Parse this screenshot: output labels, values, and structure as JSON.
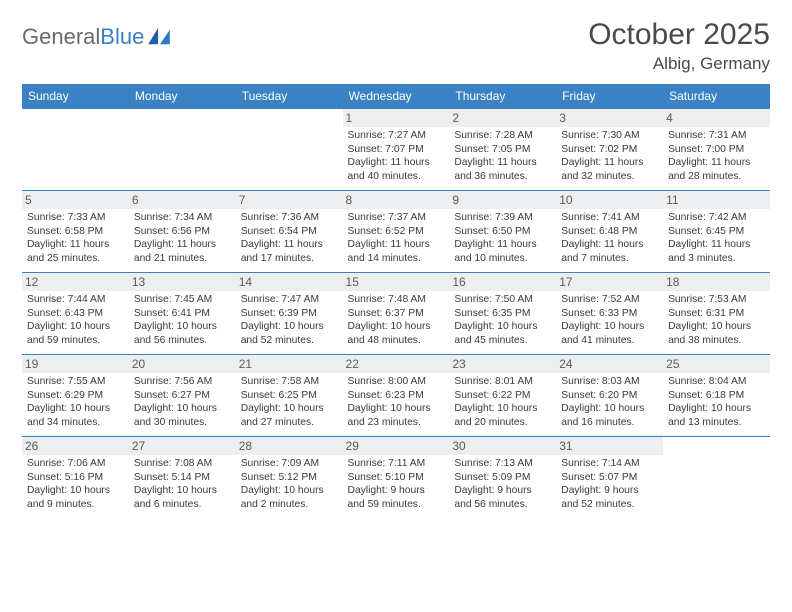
{
  "logo": {
    "text_general": "General",
    "text_blue": "Blue"
  },
  "title": "October 2025",
  "location": "Albig, Germany",
  "colors": {
    "header_bg": "#3a82c4",
    "header_text": "#ffffff",
    "daynum_bg": "#eceef0",
    "row_border": "#3a82c4",
    "body_text": "#3a3a3a",
    "title_text": "#4a4a4a",
    "logo_gray": "#6b6b6b",
    "logo_blue": "#3a7fc4"
  },
  "day_names": [
    "Sunday",
    "Monday",
    "Tuesday",
    "Wednesday",
    "Thursday",
    "Friday",
    "Saturday"
  ],
  "weeks": [
    [
      null,
      null,
      null,
      {
        "d": "1",
        "sr": "7:27 AM",
        "ss": "7:07 PM",
        "dl": "11 hours and 40 minutes."
      },
      {
        "d": "2",
        "sr": "7:28 AM",
        "ss": "7:05 PM",
        "dl": "11 hours and 36 minutes."
      },
      {
        "d": "3",
        "sr": "7:30 AM",
        "ss": "7:02 PM",
        "dl": "11 hours and 32 minutes."
      },
      {
        "d": "4",
        "sr": "7:31 AM",
        "ss": "7:00 PM",
        "dl": "11 hours and 28 minutes."
      }
    ],
    [
      {
        "d": "5",
        "sr": "7:33 AM",
        "ss": "6:58 PM",
        "dl": "11 hours and 25 minutes."
      },
      {
        "d": "6",
        "sr": "7:34 AM",
        "ss": "6:56 PM",
        "dl": "11 hours and 21 minutes."
      },
      {
        "d": "7",
        "sr": "7:36 AM",
        "ss": "6:54 PM",
        "dl": "11 hours and 17 minutes."
      },
      {
        "d": "8",
        "sr": "7:37 AM",
        "ss": "6:52 PM",
        "dl": "11 hours and 14 minutes."
      },
      {
        "d": "9",
        "sr": "7:39 AM",
        "ss": "6:50 PM",
        "dl": "11 hours and 10 minutes."
      },
      {
        "d": "10",
        "sr": "7:41 AM",
        "ss": "6:48 PM",
        "dl": "11 hours and 7 minutes."
      },
      {
        "d": "11",
        "sr": "7:42 AM",
        "ss": "6:45 PM",
        "dl": "11 hours and 3 minutes."
      }
    ],
    [
      {
        "d": "12",
        "sr": "7:44 AM",
        "ss": "6:43 PM",
        "dl": "10 hours and 59 minutes."
      },
      {
        "d": "13",
        "sr": "7:45 AM",
        "ss": "6:41 PM",
        "dl": "10 hours and 56 minutes."
      },
      {
        "d": "14",
        "sr": "7:47 AM",
        "ss": "6:39 PM",
        "dl": "10 hours and 52 minutes."
      },
      {
        "d": "15",
        "sr": "7:48 AM",
        "ss": "6:37 PM",
        "dl": "10 hours and 48 minutes."
      },
      {
        "d": "16",
        "sr": "7:50 AM",
        "ss": "6:35 PM",
        "dl": "10 hours and 45 minutes."
      },
      {
        "d": "17",
        "sr": "7:52 AM",
        "ss": "6:33 PM",
        "dl": "10 hours and 41 minutes."
      },
      {
        "d": "18",
        "sr": "7:53 AM",
        "ss": "6:31 PM",
        "dl": "10 hours and 38 minutes."
      }
    ],
    [
      {
        "d": "19",
        "sr": "7:55 AM",
        "ss": "6:29 PM",
        "dl": "10 hours and 34 minutes."
      },
      {
        "d": "20",
        "sr": "7:56 AM",
        "ss": "6:27 PM",
        "dl": "10 hours and 30 minutes."
      },
      {
        "d": "21",
        "sr": "7:58 AM",
        "ss": "6:25 PM",
        "dl": "10 hours and 27 minutes."
      },
      {
        "d": "22",
        "sr": "8:00 AM",
        "ss": "6:23 PM",
        "dl": "10 hours and 23 minutes."
      },
      {
        "d": "23",
        "sr": "8:01 AM",
        "ss": "6:22 PM",
        "dl": "10 hours and 20 minutes."
      },
      {
        "d": "24",
        "sr": "8:03 AM",
        "ss": "6:20 PM",
        "dl": "10 hours and 16 minutes."
      },
      {
        "d": "25",
        "sr": "8:04 AM",
        "ss": "6:18 PM",
        "dl": "10 hours and 13 minutes."
      }
    ],
    [
      {
        "d": "26",
        "sr": "7:06 AM",
        "ss": "5:16 PM",
        "dl": "10 hours and 9 minutes."
      },
      {
        "d": "27",
        "sr": "7:08 AM",
        "ss": "5:14 PM",
        "dl": "10 hours and 6 minutes."
      },
      {
        "d": "28",
        "sr": "7:09 AM",
        "ss": "5:12 PM",
        "dl": "10 hours and 2 minutes."
      },
      {
        "d": "29",
        "sr": "7:11 AM",
        "ss": "5:10 PM",
        "dl": "9 hours and 59 minutes."
      },
      {
        "d": "30",
        "sr": "7:13 AM",
        "ss": "5:09 PM",
        "dl": "9 hours and 56 minutes."
      },
      {
        "d": "31",
        "sr": "7:14 AM",
        "ss": "5:07 PM",
        "dl": "9 hours and 52 minutes."
      },
      null
    ]
  ],
  "labels": {
    "sunrise": "Sunrise: ",
    "sunset": "Sunset: ",
    "daylight": "Daylight: "
  }
}
